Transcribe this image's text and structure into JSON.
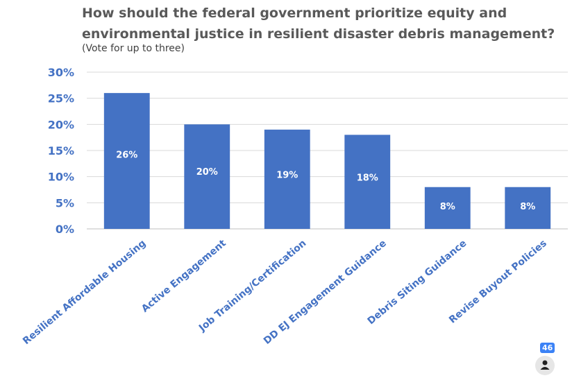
{
  "chart_data": {
    "type": "bar",
    "title": "How should the federal government prioritize equity and environmental justice in resilient disaster debris management?",
    "subtitle": "(Vote for up to three)",
    "categories": [
      "Resilient Affordable Housing",
      "Active Engagement",
      "Job Training/Certification",
      "DD EJ Engagement Guidance",
      "Debris Siting Guidance",
      "Revise Buyout Policies"
    ],
    "values": [
      26,
      20,
      19,
      18,
      8,
      8
    ],
    "data_labels": [
      "26%",
      "20%",
      "19%",
      "18%",
      "8%",
      "8%"
    ],
    "yticks": [
      "0%",
      "5%",
      "10%",
      "15%",
      "20%",
      "25%",
      "30%"
    ],
    "ylim": [
      0,
      30
    ],
    "grid": true,
    "bar_color": "#4472c4"
  },
  "response_count": "46",
  "icons": {
    "avatar": "person-icon"
  }
}
